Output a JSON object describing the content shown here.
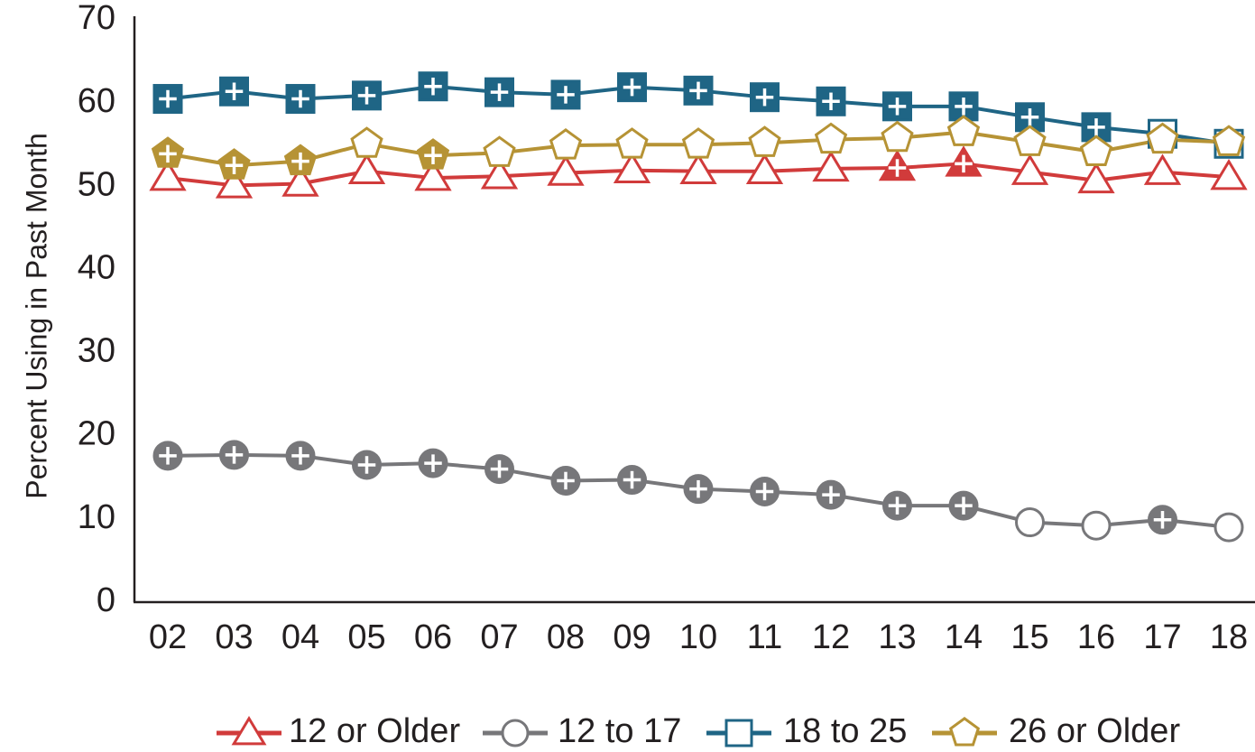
{
  "chart_data": {
    "type": "line",
    "title": "",
    "xlabel": "",
    "ylabel": "Percent Using in Past Month",
    "ylim": [
      0,
      70
    ],
    "yticks": [
      0,
      10,
      20,
      30,
      40,
      50,
      60,
      70
    ],
    "categories": [
      "02",
      "03",
      "04",
      "05",
      "06",
      "07",
      "08",
      "09",
      "10",
      "11",
      "12",
      "13",
      "14",
      "15",
      "16",
      "17",
      "18"
    ],
    "grid": false,
    "legend": "bottom",
    "series": [
      {
        "name": "12 or Older",
        "color": "#d13b3b",
        "marker": "triangle",
        "values": [
          51.0,
          50.1,
          50.3,
          51.8,
          51.0,
          51.2,
          51.6,
          51.9,
          51.8,
          51.8,
          52.1,
          52.2,
          52.7,
          51.7,
          50.7,
          51.7,
          51.1
        ],
        "filled": [
          false,
          false,
          false,
          false,
          false,
          false,
          false,
          false,
          false,
          false,
          false,
          true,
          true,
          false,
          false,
          false,
          false
        ],
        "plus": [
          false,
          false,
          false,
          false,
          false,
          false,
          false,
          false,
          false,
          false,
          false,
          true,
          true,
          false,
          false,
          false,
          false
        ]
      },
      {
        "name": "12 to 17",
        "color": "#77777a",
        "marker": "circle",
        "values": [
          17.6,
          17.7,
          17.6,
          16.5,
          16.7,
          16.0,
          14.6,
          14.7,
          13.6,
          13.3,
          12.9,
          11.6,
          11.6,
          9.6,
          9.2,
          9.9,
          9.0
        ],
        "filled": [
          true,
          true,
          true,
          true,
          true,
          true,
          true,
          true,
          true,
          true,
          true,
          true,
          true,
          false,
          false,
          true,
          false
        ],
        "plus": [
          true,
          true,
          true,
          true,
          true,
          true,
          true,
          true,
          true,
          true,
          true,
          true,
          true,
          false,
          false,
          true,
          false
        ]
      },
      {
        "name": "18 to 25",
        "color": "#1f6585",
        "marker": "square",
        "values": [
          60.5,
          61.4,
          60.5,
          60.9,
          62.0,
          61.3,
          61.0,
          61.9,
          61.5,
          60.7,
          60.2,
          59.6,
          59.6,
          58.3,
          57.1,
          56.3,
          55.1
        ],
        "filled": [
          true,
          true,
          true,
          true,
          true,
          true,
          true,
          true,
          true,
          true,
          true,
          true,
          true,
          true,
          true,
          false,
          false
        ],
        "plus": [
          true,
          true,
          true,
          true,
          true,
          true,
          true,
          true,
          true,
          true,
          true,
          true,
          true,
          true,
          true,
          false,
          false
        ]
      },
      {
        "name": "26 or Older",
        "color": "#b69335",
        "marker": "pentagon",
        "values": [
          53.9,
          52.5,
          53.0,
          55.1,
          53.7,
          54.0,
          54.9,
          55.0,
          55.0,
          55.2,
          55.6,
          55.8,
          56.5,
          55.3,
          54.1,
          55.6,
          55.3
        ],
        "filled": [
          true,
          true,
          true,
          false,
          true,
          false,
          false,
          false,
          false,
          false,
          false,
          false,
          false,
          false,
          false,
          false,
          false
        ],
        "plus": [
          true,
          true,
          true,
          false,
          true,
          false,
          false,
          false,
          false,
          false,
          false,
          false,
          false,
          false,
          false,
          true,
          false
        ]
      }
    ]
  }
}
